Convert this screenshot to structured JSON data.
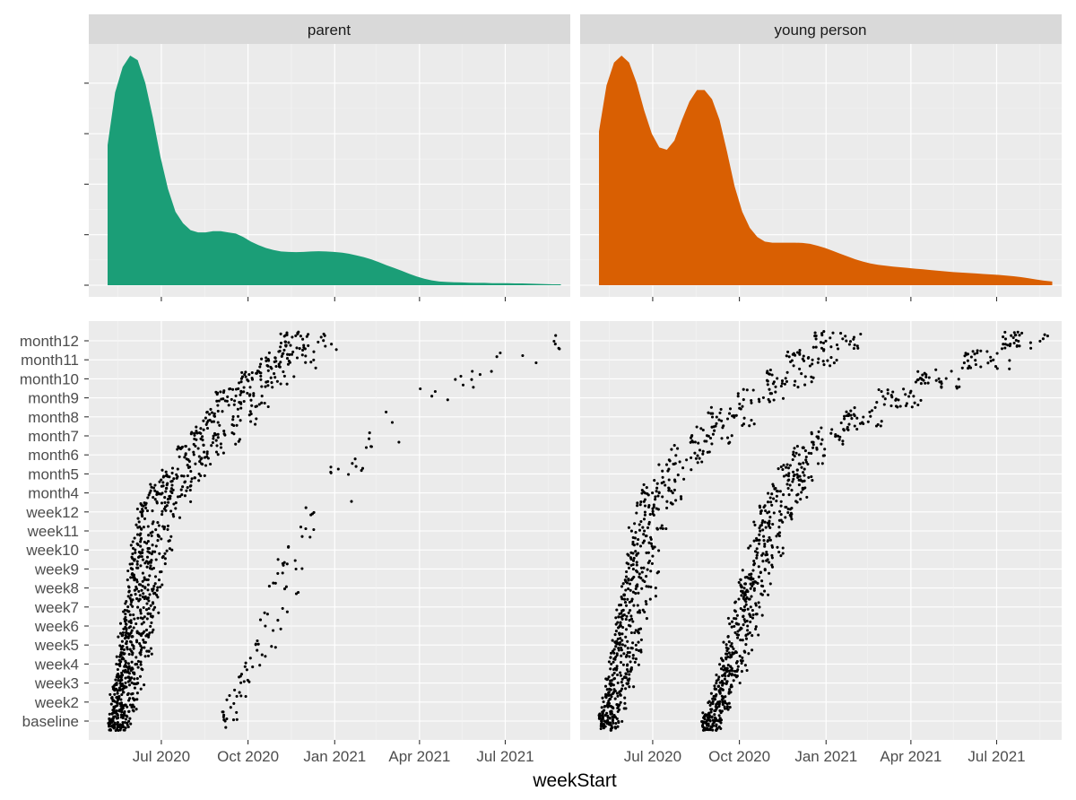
{
  "chart_data": {
    "type": "faceted density + jittered scatter",
    "xlabel": "weekStart",
    "x_range": [
      "2020-04-15",
      "2021-09-08"
    ],
    "x_ticks": [
      {
        "label": "Jul 2020",
        "date": "2020-07-01"
      },
      {
        "label": "Oct 2020",
        "date": "2020-10-01"
      },
      {
        "label": "Jan 2021",
        "date": "2021-01-01"
      },
      {
        "label": "Apr 2021",
        "date": "2021-04-01"
      },
      {
        "label": "Jul 2021",
        "date": "2021-07-01"
      }
    ],
    "y_categories": [
      "baseline",
      "week2",
      "week3",
      "week4",
      "week5",
      "week6",
      "week7",
      "week8",
      "week9",
      "week10",
      "week11",
      "week12",
      "month4",
      "month5",
      "month6",
      "month7",
      "month8",
      "month9",
      "month10",
      "month11",
      "month12"
    ],
    "facets": [
      {
        "name": "parent",
        "fill": "#1b9e77",
        "density": {
          "start": "2020-05-05",
          "end": "2021-08-29",
          "ymax": 1.0,
          "points": [
            [
              "2020-05-05",
              0.61
            ],
            [
              "2020-05-13",
              0.84
            ],
            [
              "2020-05-21",
              0.95
            ],
            [
              "2020-05-29",
              1.0
            ],
            [
              "2020-06-06",
              0.98
            ],
            [
              "2020-06-14",
              0.88
            ],
            [
              "2020-06-22",
              0.73
            ],
            [
              "2020-06-30",
              0.56
            ],
            [
              "2020-07-08",
              0.42
            ],
            [
              "2020-07-16",
              0.32
            ],
            [
              "2020-07-24",
              0.27
            ],
            [
              "2020-08-01",
              0.24
            ],
            [
              "2020-08-09",
              0.23
            ],
            [
              "2020-08-17",
              0.23
            ],
            [
              "2020-08-25",
              0.235
            ],
            [
              "2020-09-02",
              0.235
            ],
            [
              "2020-09-10",
              0.23
            ],
            [
              "2020-09-18",
              0.225
            ],
            [
              "2020-09-26",
              0.21
            ],
            [
              "2020-10-04",
              0.19
            ],
            [
              "2020-10-12",
              0.175
            ],
            [
              "2020-10-20",
              0.162
            ],
            [
              "2020-10-28",
              0.153
            ],
            [
              "2020-11-05",
              0.147
            ],
            [
              "2020-11-13",
              0.145
            ],
            [
              "2020-11-21",
              0.144
            ],
            [
              "2020-11-29",
              0.145
            ],
            [
              "2020-12-07",
              0.147
            ],
            [
              "2020-12-15",
              0.148
            ],
            [
              "2020-12-23",
              0.147
            ],
            [
              "2020-12-31",
              0.145
            ],
            [
              "2021-01-08",
              0.142
            ],
            [
              "2021-01-16",
              0.137
            ],
            [
              "2021-01-24",
              0.13
            ],
            [
              "2021-02-01",
              0.122
            ],
            [
              "2021-02-09",
              0.112
            ],
            [
              "2021-02-17",
              0.1
            ],
            [
              "2021-02-25",
              0.087
            ],
            [
              "2021-03-05",
              0.075
            ],
            [
              "2021-03-13",
              0.063
            ],
            [
              "2021-03-21",
              0.05
            ],
            [
              "2021-03-29",
              0.038
            ],
            [
              "2021-04-06",
              0.028
            ],
            [
              "2021-04-14",
              0.021
            ],
            [
              "2021-04-22",
              0.016
            ],
            [
              "2021-04-30",
              0.014
            ],
            [
              "2021-05-08",
              0.013
            ],
            [
              "2021-05-16",
              0.012
            ],
            [
              "2021-05-24",
              0.011
            ],
            [
              "2021-06-01",
              0.01
            ],
            [
              "2021-06-09",
              0.01
            ],
            [
              "2021-06-17",
              0.009
            ],
            [
              "2021-06-25",
              0.009
            ],
            [
              "2021-07-03",
              0.009
            ],
            [
              "2021-07-11",
              0.008
            ],
            [
              "2021-07-19",
              0.008
            ],
            [
              "2021-07-27",
              0.007
            ],
            [
              "2021-08-04",
              0.006
            ],
            [
              "2021-08-12",
              0.005
            ],
            [
              "2021-08-20",
              0.004
            ],
            [
              "2021-08-29",
              0.004
            ]
          ]
        },
        "scatter_trend": [
          {
            "start": "2020-05-05",
            "end": "2021-05-10",
            "anchors": [
              [
                0,
                0
              ],
              [
                1,
                1.1
              ],
              [
                1.8,
                3
              ],
              [
                2.5,
                5
              ],
              [
                3.2,
                7
              ],
              [
                4,
                9
              ],
              [
                5,
                11
              ],
              [
                7,
                12.3
              ],
              [
                9,
                13.3
              ],
              [
                12,
                14.5
              ],
              [
                15,
                16
              ],
              [
                18,
                17.5
              ],
              [
                22,
                18.5
              ],
              [
                27,
                20.2
              ],
              [
                32,
                21.4
              ],
              [
                37,
                22.5
              ],
              [
                42,
                23.6
              ],
              [
                48,
                24.5
              ],
              [
                54,
                25.5
              ],
              [
                58,
                26.5
              ],
              [
                62,
                27.5
              ]
            ],
            "spread": 3.2,
            "n": 1020
          },
          {
            "start": "2020-09-01",
            "end": "2021-09-01",
            "anchors": [
              [
                0,
                0
              ],
              [
                2,
                1.5
              ],
              [
                4,
                3
              ],
              [
                6,
                5
              ],
              [
                8,
                7
              ],
              [
                10,
                9
              ],
              [
                13,
                11
              ],
              [
                17,
                13
              ],
              [
                22,
                15
              ],
              [
                27,
                16.5
              ],
              [
                34,
                17.7
              ],
              [
                40,
                18.7
              ],
              [
                46,
                19.5
              ],
              [
                52,
                20.5
              ],
              [
                58,
                21.5
              ],
              [
                64,
                22.5
              ]
            ],
            "spread": 2.5,
            "n": 120
          }
        ]
      },
      {
        "name": "young person",
        "fill": "#d95f02",
        "density": {
          "start": "2020-05-05",
          "end": "2021-08-29",
          "ymax": 1.0,
          "points": [
            [
              "2020-05-05",
              0.67
            ],
            [
              "2020-05-13",
              0.87
            ],
            [
              "2020-05-21",
              0.97
            ],
            [
              "2020-05-29",
              1.0
            ],
            [
              "2020-06-06",
              0.97
            ],
            [
              "2020-06-14",
              0.88
            ],
            [
              "2020-06-22",
              0.76
            ],
            [
              "2020-06-30",
              0.66
            ],
            [
              "2020-07-08",
              0.6
            ],
            [
              "2020-07-16",
              0.59
            ],
            [
              "2020-07-24",
              0.63
            ],
            [
              "2020-08-01",
              0.72
            ],
            [
              "2020-08-09",
              0.8
            ],
            [
              "2020-08-17",
              0.85
            ],
            [
              "2020-08-25",
              0.85
            ],
            [
              "2020-09-02",
              0.81
            ],
            [
              "2020-09-10",
              0.72
            ],
            [
              "2020-09-18",
              0.58
            ],
            [
              "2020-09-26",
              0.43
            ],
            [
              "2020-10-04",
              0.32
            ],
            [
              "2020-10-12",
              0.25
            ],
            [
              "2020-10-20",
              0.21
            ],
            [
              "2020-10-28",
              0.19
            ],
            [
              "2020-11-05",
              0.185
            ],
            [
              "2020-11-13",
              0.185
            ],
            [
              "2020-11-21",
              0.185
            ],
            [
              "2020-11-29",
              0.185
            ],
            [
              "2020-12-07",
              0.184
            ],
            [
              "2020-12-15",
              0.18
            ],
            [
              "2020-12-23",
              0.172
            ],
            [
              "2020-12-31",
              0.162
            ],
            [
              "2021-01-08",
              0.15
            ],
            [
              "2021-01-16",
              0.137
            ],
            [
              "2021-01-24",
              0.125
            ],
            [
              "2021-02-01",
              0.113
            ],
            [
              "2021-02-09",
              0.103
            ],
            [
              "2021-02-17",
              0.095
            ],
            [
              "2021-02-25",
              0.089
            ],
            [
              "2021-03-05",
              0.085
            ],
            [
              "2021-03-13",
              0.081
            ],
            [
              "2021-03-21",
              0.078
            ],
            [
              "2021-03-29",
              0.075
            ],
            [
              "2021-04-06",
              0.072
            ],
            [
              "2021-04-14",
              0.069
            ],
            [
              "2021-04-22",
              0.066
            ],
            [
              "2021-04-30",
              0.063
            ],
            [
              "2021-05-08",
              0.06
            ],
            [
              "2021-05-16",
              0.057
            ],
            [
              "2021-05-24",
              0.055
            ],
            [
              "2021-06-01",
              0.053
            ],
            [
              "2021-06-09",
              0.051
            ],
            [
              "2021-06-17",
              0.049
            ],
            [
              "2021-06-25",
              0.047
            ],
            [
              "2021-07-03",
              0.045
            ],
            [
              "2021-07-11",
              0.042
            ],
            [
              "2021-07-19",
              0.039
            ],
            [
              "2021-07-27",
              0.035
            ],
            [
              "2021-08-04",
              0.03
            ],
            [
              "2021-08-12",
              0.025
            ],
            [
              "2021-08-20",
              0.02
            ],
            [
              "2021-08-29",
              0.016
            ]
          ]
        },
        "scatter_trend": [
          {
            "start": "2020-05-05",
            "end": "2021-05-15",
            "anchors": [
              [
                0,
                0
              ],
              [
                1,
                1.2
              ],
              [
                2,
                3
              ],
              [
                2.8,
                5
              ],
              [
                3.6,
                7
              ],
              [
                4.5,
                9
              ],
              [
                5.5,
                11
              ],
              [
                7,
                12.4
              ],
              [
                9,
                13.3
              ],
              [
                12,
                14.5
              ],
              [
                16,
                15.7
              ],
              [
                20,
                16.8
              ],
              [
                25,
                17.8
              ],
              [
                30,
                19.3
              ],
              [
                36,
                20.8
              ],
              [
                42,
                22
              ],
              [
                48,
                23.5
              ],
              [
                54,
                25
              ],
              [
                60,
                26.5
              ]
            ],
            "spread": 3.0,
            "n": 700
          },
          {
            "start": "2020-08-22",
            "end": "2021-09-08",
            "anchors": [
              [
                0,
                0
              ],
              [
                1.5,
                1
              ],
              [
                3,
                3
              ],
              [
                4.5,
                5
              ],
              [
                6,
                7
              ],
              [
                7.5,
                9
              ],
              [
                9,
                11
              ],
              [
                11,
                12.4
              ],
              [
                14,
                14
              ],
              [
                18,
                15.3
              ],
              [
                23,
                16.3
              ],
              [
                28,
                17.2
              ],
              [
                34,
                18.2
              ],
              [
                40,
                19
              ],
              [
                46,
                20
              ],
              [
                52,
                20.8
              ],
              [
                58,
                21.5
              ],
              [
                64,
                22
              ]
            ],
            "spread": 2.7,
            "n": 760
          }
        ]
      }
    ]
  }
}
